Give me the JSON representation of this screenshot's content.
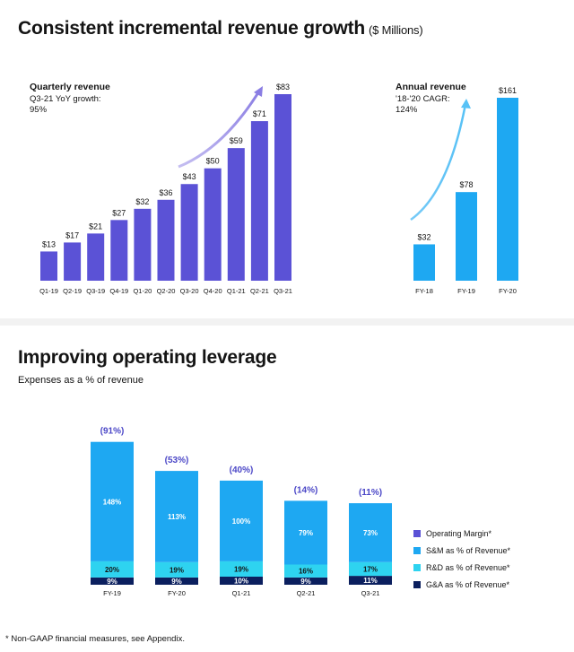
{
  "top": {
    "title": "Consistent incremental revenue growth",
    "title_unit": "($ Millions)"
  },
  "bottom": {
    "title": "Improving operating leverage",
    "subtitle": "Expenses as a % of revenue"
  },
  "footnote": "* Non-GAAP financial measures, see Appendix.",
  "colors": {
    "quarterly": "#5b52d6",
    "annual": "#1ea8f2",
    "margin_label": "#4b47c7",
    "sm": "#1ea8f2",
    "rd": "#2ed3f0",
    "ga": "#0b1f5e"
  },
  "chart_data": [
    {
      "type": "bar",
      "title": "Quarterly revenue",
      "annotation": [
        "Q3-21 YoY growth:",
        "95%"
      ],
      "categories": [
        "Q1-19",
        "Q2-19",
        "Q3-19",
        "Q4-19",
        "Q1-20",
        "Q2-20",
        "Q3-20",
        "Q4-20",
        "Q1-21",
        "Q2-21",
        "Q3-21"
      ],
      "values": [
        13,
        17,
        21,
        27,
        32,
        36,
        43,
        50,
        59,
        71,
        83
      ],
      "value_labels": [
        "$13",
        "$17",
        "$21",
        "$27",
        "$32",
        "$36",
        "$43",
        "$50",
        "$59",
        "$71",
        "$83"
      ],
      "ylim": [
        0,
        83
      ]
    },
    {
      "type": "bar",
      "title": "Annual revenue",
      "annotation": [
        "'18-'20 CAGR:",
        "124%"
      ],
      "categories": [
        "FY-18",
        "FY-19",
        "FY-20"
      ],
      "values": [
        32,
        78,
        161
      ],
      "value_labels": [
        "$32",
        "$78",
        "$161"
      ],
      "ylim": [
        0,
        161
      ]
    },
    {
      "type": "bar",
      "stacked": true,
      "categories": [
        "FY-19",
        "FY-20",
        "Q1-21",
        "Q2-21",
        "Q3-21"
      ],
      "series": [
        {
          "name": "G&A as % of Revenue*",
          "values": [
            9,
            9,
            10,
            9,
            11
          ],
          "labels": [
            "9%",
            "9%",
            "10%",
            "9%",
            "11%"
          ]
        },
        {
          "name": "R&D as % of Revenue*",
          "values": [
            20,
            19,
            19,
            16,
            17
          ],
          "labels": [
            "20%",
            "19%",
            "19%",
            "16%",
            "17%"
          ]
        },
        {
          "name": "S&M as % of Revenue*",
          "values": [
            148,
            113,
            100,
            79,
            73
          ],
          "labels": [
            "148%",
            "113%",
            "100%",
            "79%",
            "73%"
          ]
        }
      ],
      "operating_margin": {
        "name": "Operating Margin*",
        "values": [
          -91,
          -53,
          -40,
          -14,
          -11
        ],
        "labels": [
          "(91%)",
          "(53%)",
          "(40%)",
          "(14%)",
          "(11%)"
        ]
      },
      "legend": [
        "Operating Margin*",
        "S&M as % of Revenue*",
        "R&D as % of Revenue*",
        "G&A as % of Revenue*"
      ]
    }
  ]
}
